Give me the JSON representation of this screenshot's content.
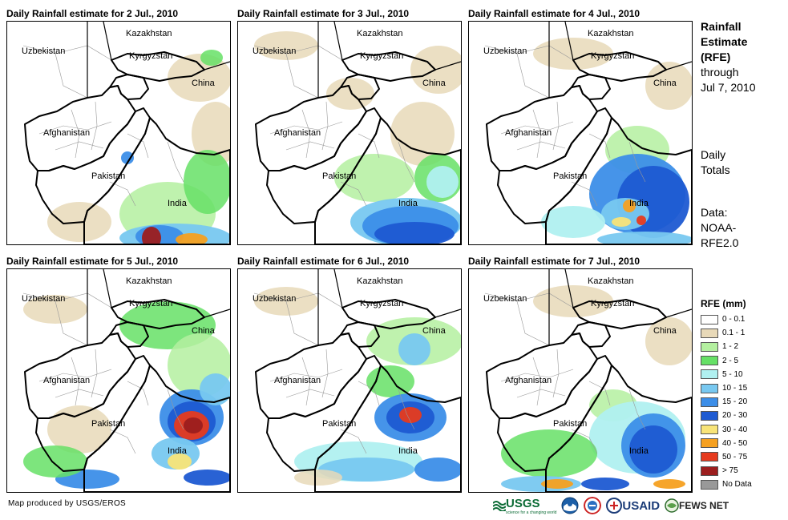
{
  "panels": [
    {
      "title": "Daily Rainfall estimate for 2 Jul., 2010",
      "variant": "jul2"
    },
    {
      "title": "Daily Rainfall estimate for 3 Jul., 2010",
      "variant": "jul3"
    },
    {
      "title": "Daily Rainfall estimate for 4 Jul., 2010",
      "variant": "jul4"
    },
    {
      "title": "Daily Rainfall estimate for 5 Jul., 2010",
      "variant": "jul5"
    },
    {
      "title": "Daily Rainfall estimate for 6 Jul., 2010",
      "variant": "jul6"
    },
    {
      "title": "Daily Rainfall estimate for 7 Jul., 2010",
      "variant": "jul7"
    }
  ],
  "map_labels": {
    "kazakhstan": "Kazakhstan",
    "uzbekistan": "Uzbekistan",
    "kyrgyzstan": "Kyrgyzstan",
    "china": "China",
    "afghanistan": "Afghanistan",
    "pakistan": "Pakistan",
    "india": "India"
  },
  "side": {
    "title_line1": "Rainfall",
    "title_line2": "Estimate",
    "title_line3": "(RFE)",
    "title_line4": "through",
    "title_line5": "Jul 7, 2010",
    "daily_line1": "Daily",
    "daily_line2": "Totals",
    "data_line1": "Data:",
    "data_line2": "NOAA-",
    "data_line3": "RFE2.0"
  },
  "legend": {
    "title": "RFE (mm)",
    "items": [
      {
        "label": "0 - 0.1",
        "color": "#ffffff"
      },
      {
        "label": "0.1 - 1",
        "color": "#e8d9b8"
      },
      {
        "label": "1 - 2",
        "color": "#b4f0a0"
      },
      {
        "label": "2 - 5",
        "color": "#66e066"
      },
      {
        "label": "5 - 10",
        "color": "#b0f0f0"
      },
      {
        "label": "10 - 15",
        "color": "#78c8f0"
      },
      {
        "label": "15 - 20",
        "color": "#3c8ee8"
      },
      {
        "label": "20 - 30",
        "color": "#1e5ad2"
      },
      {
        "label": "30 - 40",
        "color": "#f8e478"
      },
      {
        "label": "40 - 50",
        "color": "#f5a020"
      },
      {
        "label": "50 - 75",
        "color": "#e63a1e"
      },
      {
        "label": "> 75",
        "color": "#9c1e1e"
      },
      {
        "label": "No Data",
        "color": "#999999"
      }
    ]
  },
  "footer": {
    "credit": "Map produced by USGS/EROS",
    "usgs": "USGS",
    "usgs_tagline": "science for a changing world",
    "usaid": "USAID",
    "fews": "FEWS NET"
  }
}
